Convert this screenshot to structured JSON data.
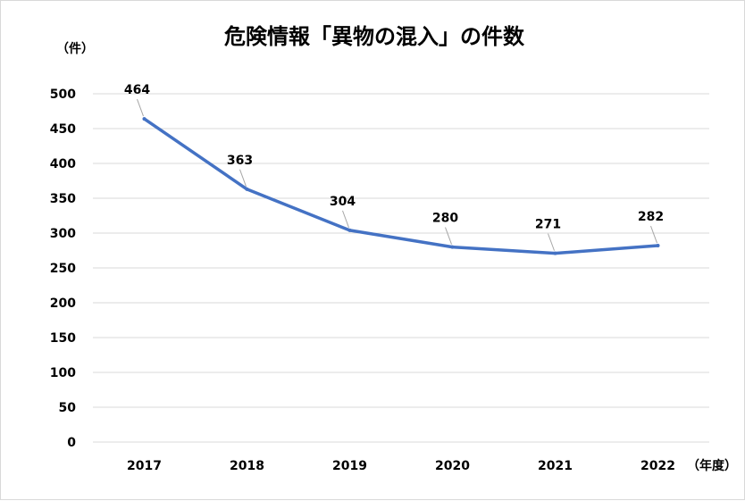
{
  "chart_data": {
    "type": "line",
    "title": "危険情報「異物の混入」の件数",
    "y_unit": "（件）",
    "x_unit": "（年度）",
    "x": [
      "2017",
      "2018",
      "2019",
      "2020",
      "2021",
      "2022"
    ],
    "series": [
      {
        "values": [
          464,
          363,
          304,
          280,
          271,
          282
        ]
      }
    ],
    "y_ticks": [
      "0",
      "50",
      "100",
      "150",
      "200",
      "250",
      "300",
      "350",
      "400",
      "450",
      "500"
    ],
    "ylim": [
      0,
      500
    ],
    "grid": true,
    "data_labels": true,
    "line_color": "#4472c4"
  }
}
